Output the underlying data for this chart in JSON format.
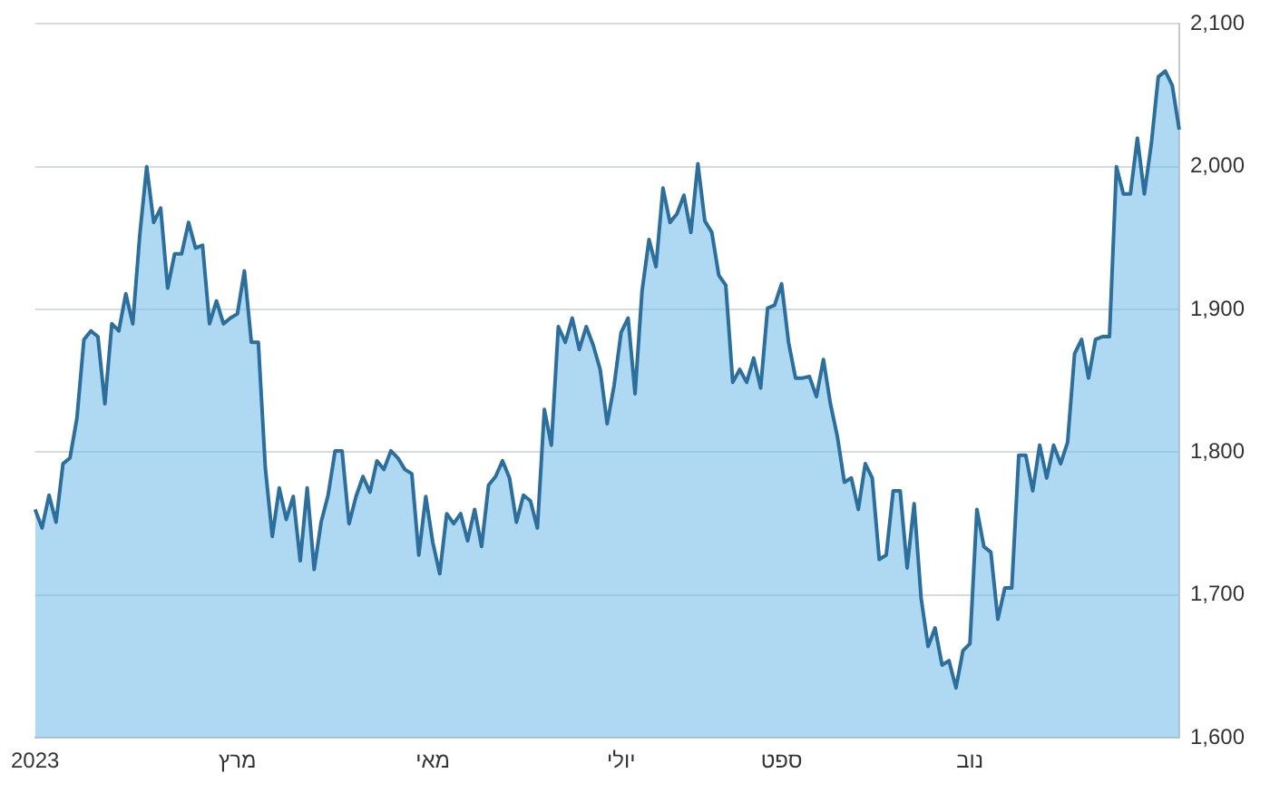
{
  "chart_data": {
    "type": "area",
    "categories": [
      "2023",
      null,
      null,
      null,
      null,
      null,
      null,
      null,
      null,
      null,
      null,
      null,
      null,
      null,
      null,
      null,
      null,
      null,
      null,
      null,
      null,
      null,
      null,
      null,
      null,
      null,
      null,
      null,
      null,
      "מרץ",
      null,
      null,
      null,
      null,
      null,
      null,
      null,
      null,
      null,
      null,
      null,
      null,
      null,
      null,
      null,
      null,
      null,
      null,
      null,
      null,
      null,
      null,
      null,
      null,
      null,
      null,
      null,
      "מאי",
      null,
      null,
      null,
      null,
      null,
      null,
      null,
      null,
      null,
      null,
      null,
      null,
      null,
      null,
      null,
      null,
      null,
      null,
      null,
      null,
      null,
      null,
      null,
      null,
      null,
      null,
      "יולי",
      null,
      null,
      null,
      null,
      null,
      null,
      null,
      null,
      null,
      null,
      null,
      null,
      null,
      null,
      null,
      null,
      null,
      null,
      null,
      null,
      null,
      null,
      "ספט",
      null,
      null,
      null,
      null,
      null,
      null,
      null,
      null,
      null,
      null,
      null,
      null,
      null,
      null,
      null,
      null,
      null,
      null,
      null,
      null,
      null,
      null,
      null,
      null,
      null,
      null,
      "נוב",
      null,
      null,
      null,
      null,
      null,
      null,
      null,
      null,
      null,
      null,
      null,
      null,
      null,
      null,
      null,
      null,
      null,
      null,
      null,
      null,
      null,
      null,
      null,
      null,
      null,
      null,
      null,
      null,
      null,
      null
    ],
    "series": [
      {
        "color": "#2d6f9c",
        "values": [
          1760,
          1747,
          1770,
          1751,
          1792,
          1796,
          1824,
          1879,
          1885,
          1881,
          1834,
          1890,
          1885,
          1911,
          1890,
          1952,
          2000,
          1961,
          1971,
          1915,
          1939,
          1939,
          1961,
          1943,
          1945,
          1890,
          1906,
          1890,
          1894,
          1897,
          1927,
          1877,
          1877,
          1789,
          1741,
          1775,
          1753,
          1769,
          1724,
          1775,
          1718,
          1751,
          1770,
          1801,
          1801,
          1750,
          1769,
          1783,
          1772,
          1794,
          1788,
          1801,
          1796,
          1788,
          1785,
          1728,
          1769,
          1737,
          1715,
          1757,
          1750,
          1757,
          1738,
          1760,
          1734,
          1777,
          1783,
          1794,
          1782,
          1751,
          1770,
          1766,
          1747,
          1830,
          1805,
          1888,
          1877,
          1894,
          1872,
          1888,
          1875,
          1858,
          1820,
          1847,
          1884,
          1894,
          1841,
          1913,
          1949,
          1930,
          1985,
          1961,
          1967,
          1980,
          1954,
          2002,
          1962,
          1954,
          1924,
          1917,
          1849,
          1858,
          1849,
          1866,
          1845,
          1901,
          1903,
          1918,
          1877,
          1852,
          1852,
          1853,
          1839,
          1865,
          1834,
          1811,
          1779,
          1782,
          1760,
          1792,
          1782,
          1725,
          1728,
          1773,
          1773,
          1719,
          1764,
          1698,
          1664,
          1677,
          1651,
          1654,
          1635,
          1661,
          1666,
          1760,
          1734,
          1730,
          1683,
          1705,
          1705,
          1798,
          1798,
          1773,
          1805,
          1782,
          1805,
          1792,
          1807,
          1869,
          1879,
          1852,
          1879,
          1881,
          1881,
          2000,
          1981,
          1981,
          2020,
          1981,
          2016,
          2063,
          2067,
          2057,
          2026
        ]
      }
    ],
    "ylim": [
      1600,
      2100
    ],
    "yticks": [
      {
        "value": 1600,
        "label": "1,600"
      },
      {
        "value": 1700,
        "label": "1,700"
      },
      {
        "value": 1800,
        "label": "1,800"
      },
      {
        "value": 1900,
        "label": "1,900"
      },
      {
        "value": 2000,
        "label": "2,000"
      },
      {
        "value": 2100,
        "label": "2,100"
      }
    ],
    "grid": "y",
    "legend": false
  }
}
